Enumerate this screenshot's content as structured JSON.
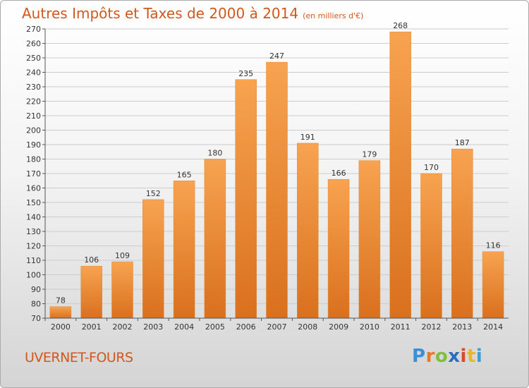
{
  "chart_data": {
    "type": "bar",
    "title": "Autres Impôts et Taxes de 2000 à 2014",
    "subtitle": "(en milliers d'€)",
    "categories": [
      "2000",
      "2001",
      "2002",
      "2003",
      "2004",
      "2005",
      "2006",
      "2007",
      "2008",
      "2009",
      "2010",
      "2011",
      "2012",
      "2013",
      "2014"
    ],
    "values": [
      78,
      106,
      109,
      152,
      165,
      180,
      235,
      247,
      191,
      166,
      179,
      268,
      170,
      187,
      116
    ],
    "ylim": [
      70,
      270
    ],
    "yticks": [
      70,
      80,
      90,
      100,
      110,
      120,
      130,
      140,
      150,
      160,
      170,
      180,
      190,
      200,
      210,
      220,
      230,
      240,
      250,
      260,
      270
    ],
    "grid": true,
    "bar_color": "#f0953c",
    "legend": "none"
  },
  "footer": {
    "commune": "UVERNET-FOURS",
    "logo_text": "Proxiti",
    "logo_colors": [
      "#3a8fd6",
      "#e8792b",
      "#7fbf3a",
      "#2a6fbf",
      "#d94a2a",
      "#e8b82b",
      "#3aa0d6"
    ]
  }
}
